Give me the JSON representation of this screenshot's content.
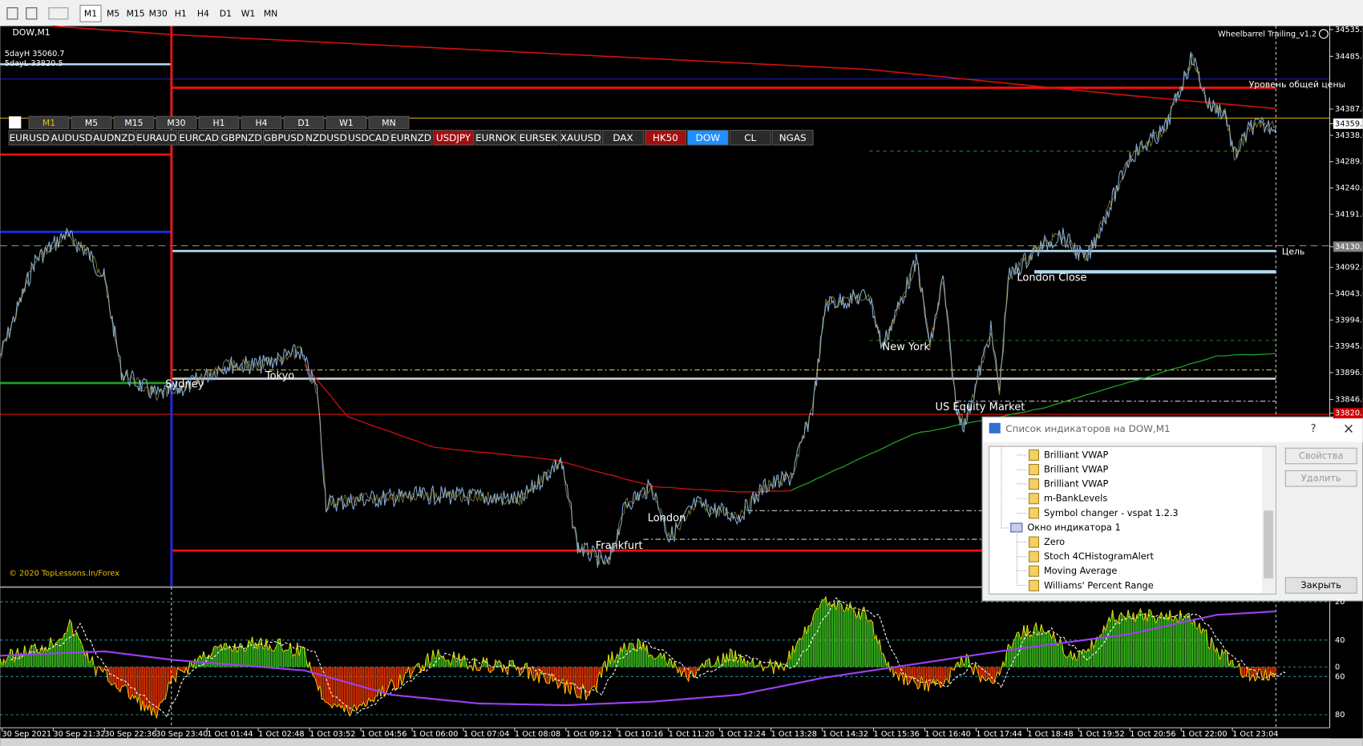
{
  "toolbar": {
    "timeframes": [
      "M1",
      "M5",
      "M15",
      "M30",
      "H1",
      "H4",
      "D1",
      "W1",
      "MN"
    ]
  },
  "chart": {
    "symbol": "DOW,M1",
    "info": [
      "5dayH 35060.7",
      "5dayL 33820.5"
    ],
    "indicator_name": "Wheelbarrel Trailing_v1.2",
    "timeframe_buttons": [
      "M1",
      "M5",
      "M15",
      "M30",
      "H1",
      "H4",
      "D1",
      "W1",
      "MN"
    ],
    "symbol_buttons": [
      {
        "label": "EURUSD"
      },
      {
        "label": "AUDUSD"
      },
      {
        "label": "AUDNZD"
      },
      {
        "label": "EURAUD"
      },
      {
        "label": "EURCAD"
      },
      {
        "label": "GBPNZD"
      },
      {
        "label": "GBPUSD"
      },
      {
        "label": "NZDUSD"
      },
      {
        "label": "USDCAD"
      },
      {
        "label": "EURNZD"
      },
      {
        "label": "USDJPY",
        "bg": "#a01010"
      },
      {
        "label": "EURNOK"
      },
      {
        "label": "EURSEK"
      },
      {
        "label": "XAUUSD"
      },
      {
        "label": "DAX"
      },
      {
        "label": "HK50",
        "bg": "#a01010"
      },
      {
        "label": "DOW",
        "bg": "#1e90ff"
      },
      {
        "label": "CL"
      },
      {
        "label": "NGAS"
      }
    ],
    "price_axis": [
      {
        "value": 34535.0,
        "label": "34535.0"
      },
      {
        "value": 34485.0,
        "label": "34485.0"
      },
      {
        "value": 34387.0,
        "label": "34387.0"
      },
      {
        "value": 34359.7,
        "label": "34359.7",
        "bg": "#ffffff"
      },
      {
        "value": 34338.0,
        "label": "34338.0"
      },
      {
        "value": 34289.0,
        "label": "34289.0"
      },
      {
        "value": 34240.0,
        "label": "34240.0"
      },
      {
        "value": 34191.0,
        "label": "34191.0"
      },
      {
        "value": 34130.6,
        "label": "34130.6",
        "bg": "#808080"
      },
      {
        "value": 34092.0,
        "label": "34092.0"
      },
      {
        "value": 34043.0,
        "label": "34043.0"
      },
      {
        "value": 33994.0,
        "label": "33994.0"
      },
      {
        "value": 33945.0,
        "label": "33945.0"
      },
      {
        "value": 33896.0,
        "label": "33896.0"
      },
      {
        "value": 33846.0,
        "label": "33846.0"
      },
      {
        "value": 33820.5,
        "label": "33820.5",
        "bg": "#d00000"
      }
    ],
    "level_labels": [
      "Уровень общей цены",
      "Цель"
    ],
    "sessions": [
      "Sydney",
      "Tokyo",
      "New York",
      "US Equity Market",
      "London Close",
      "London",
      "Frankfurt"
    ],
    "copyright": "© 2020 TopLessons.In/Forex",
    "oscillator_axis": [
      "20",
      "40",
      "0",
      "60",
      "80"
    ],
    "time_axis": [
      "30 Sep 2021",
      "30 Sep 21:32",
      "30 Sep 22:36",
      "30 Sep 23:40",
      "1 Oct 01:44",
      "1 Oct 02:48",
      "1 Oct 03:52",
      "1 Oct 04:56",
      "1 Oct 06:00",
      "1 Oct 07:04",
      "1 Oct 08:08",
      "1 Oct 09:12",
      "1 Oct 10:16",
      "1 Oct 11:20",
      "1 Oct 12:24",
      "1 Oct 13:28",
      "1 Oct 14:32",
      "1 Oct 15:36",
      "1 Oct 16:40",
      "1 Oct 17:44",
      "1 Oct 18:48",
      "1 Oct 19:52",
      "1 Oct 20:56",
      "1 Oct 22:00",
      "1 Oct 23:04"
    ]
  },
  "dialog": {
    "title": "Список индикаторов на DOW,M1",
    "items": [
      "Brilliant VWAP",
      "Brilliant VWAP",
      "Brilliant VWAP",
      "m-BankLevels",
      "Symbol changer - vspat 1.2.3",
      "Окно индикатора 1",
      "Zero",
      "Stoch 4CHistogramAlert",
      "Moving Average",
      "Williams' Percent Range"
    ],
    "buttons": [
      "Свойства",
      "Удалить",
      "Закрыть"
    ]
  }
}
